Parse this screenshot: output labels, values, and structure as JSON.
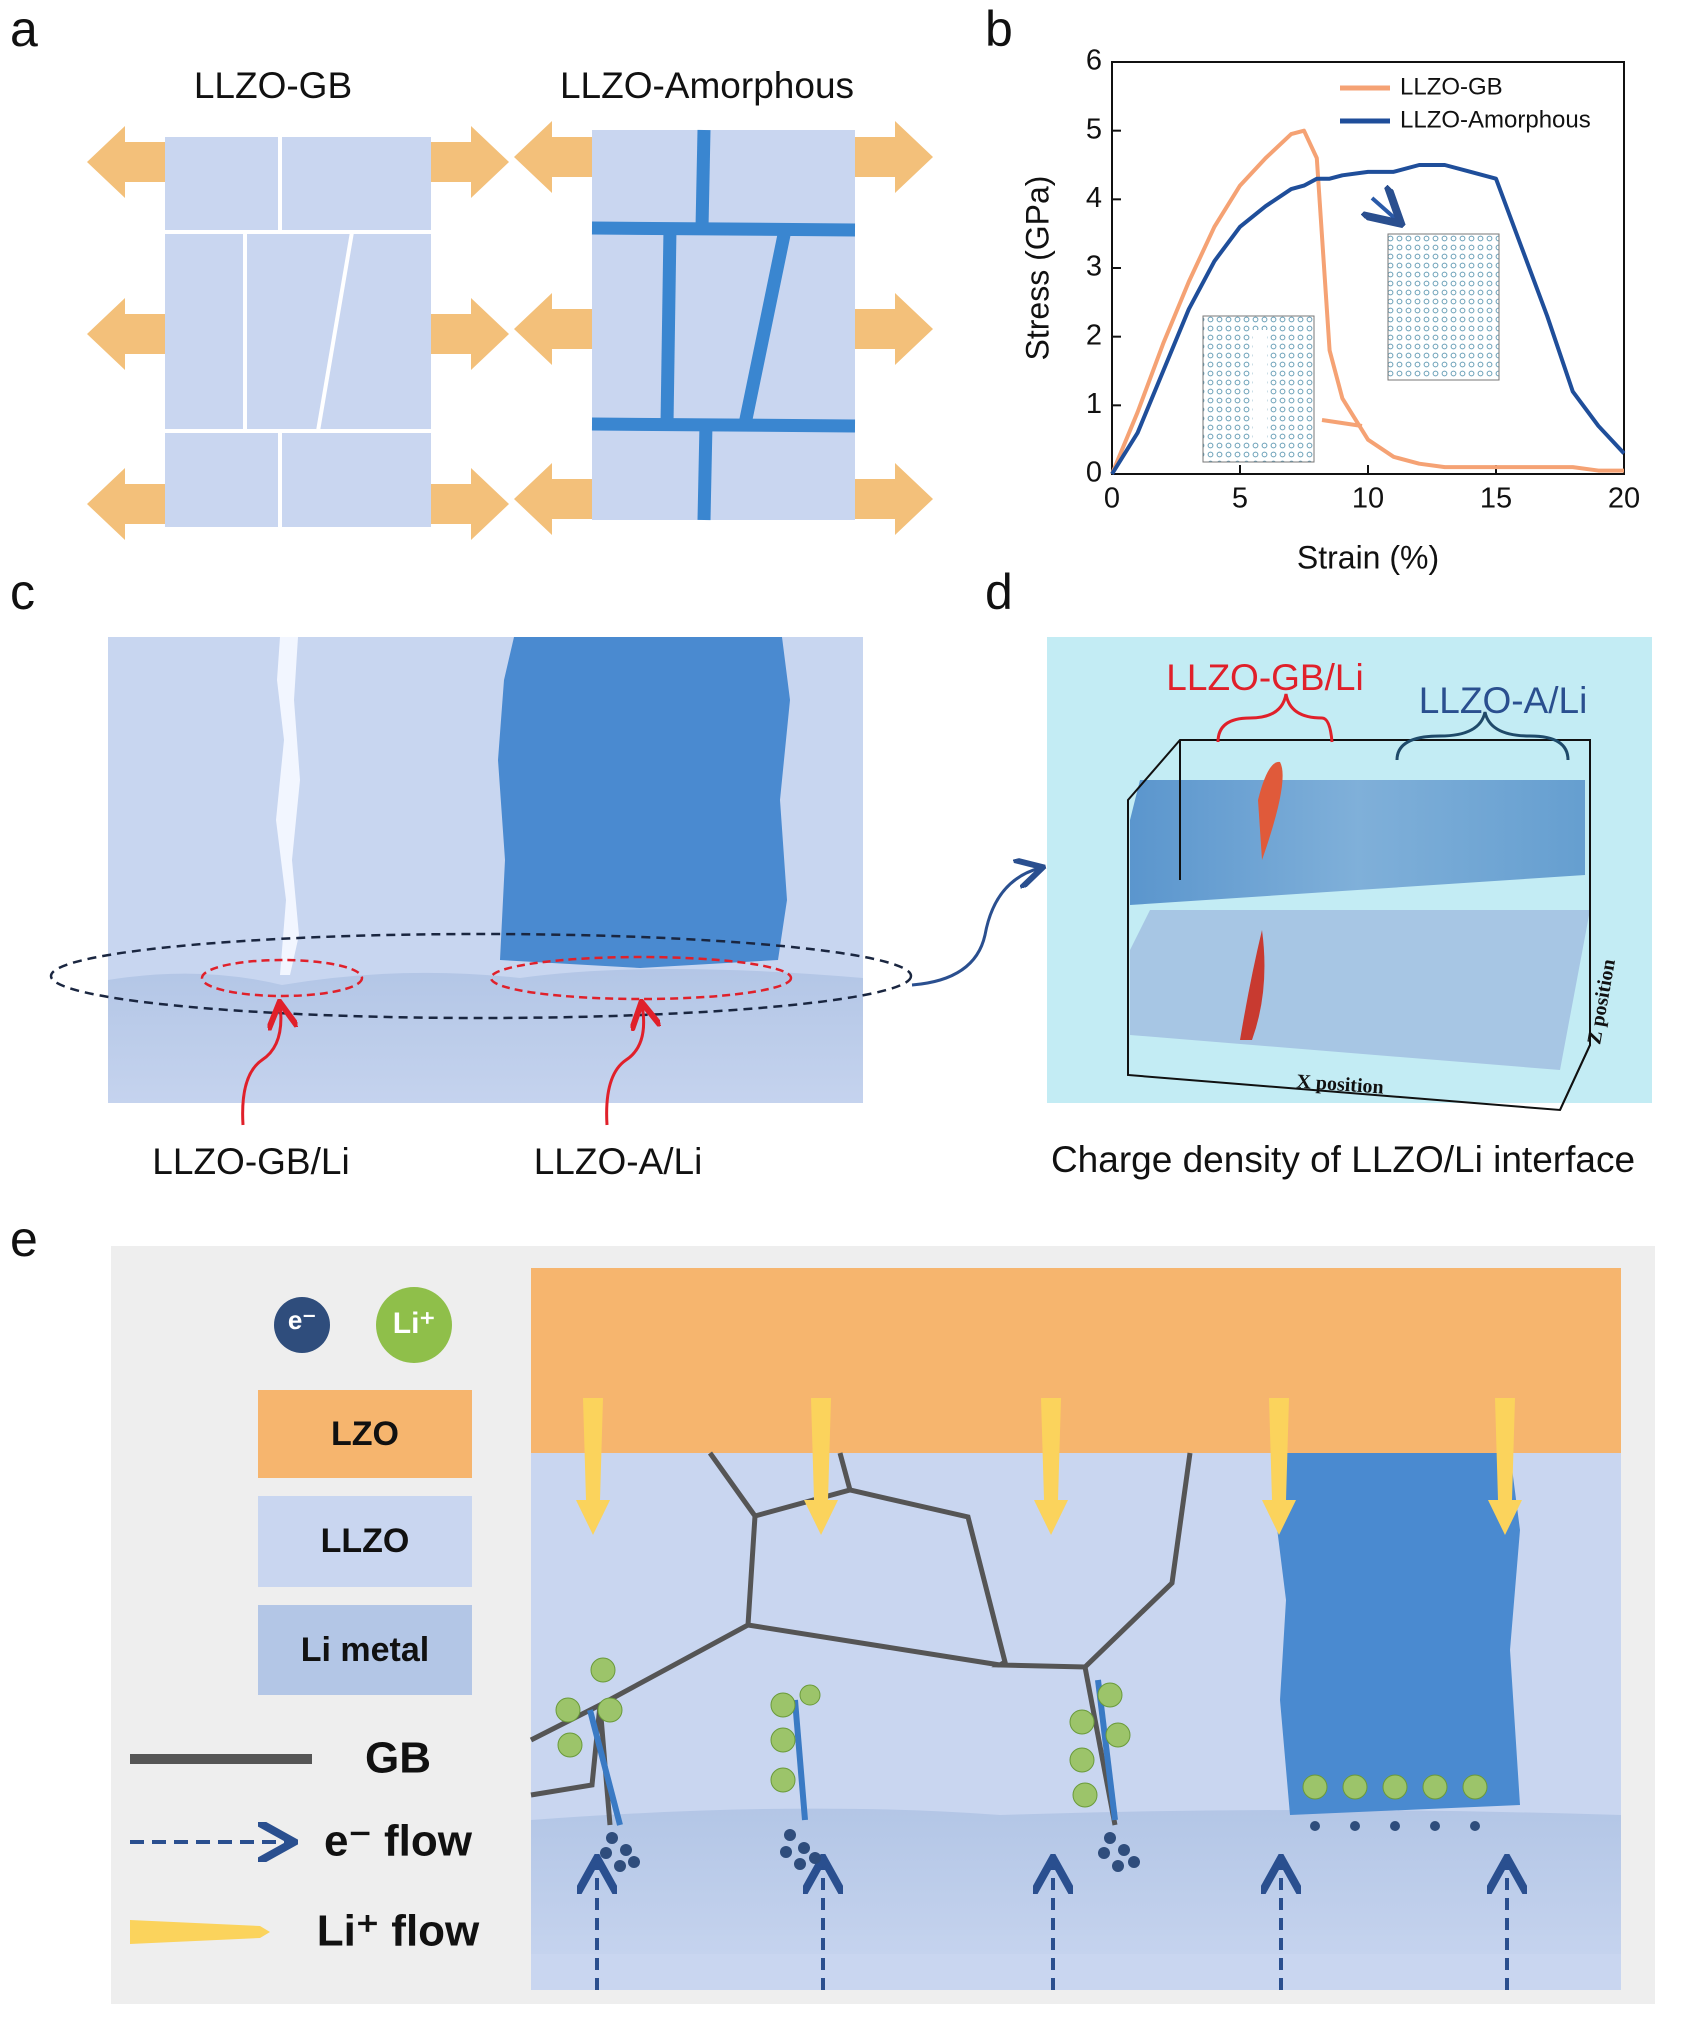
{
  "panel_labels": [
    "a",
    "b",
    "c",
    "d",
    "e"
  ],
  "panel_a": {
    "gb_title": "LLZO-GB",
    "amorphous_title": "LLZO-Amorphous"
  },
  "chart_data": {
    "type": "line",
    "xlabel": "Strain (%)",
    "ylabel": "Stress (GPa)",
    "x": [
      0,
      1,
      2,
      3,
      4,
      5,
      6,
      7,
      7.5,
      8,
      8.5,
      9,
      10,
      11,
      12,
      13,
      14,
      15,
      16,
      17,
      18,
      19,
      20
    ],
    "series": [
      {
        "name": "LLZO-GB",
        "color": "#f5a274",
        "values": [
          0,
          0.9,
          1.9,
          2.8,
          3.6,
          4.2,
          4.6,
          4.95,
          5.0,
          4.6,
          1.8,
          1.1,
          0.5,
          0.25,
          0.15,
          0.1,
          0.1,
          0.1,
          0.1,
          0.1,
          0.1,
          0.05,
          0.05
        ]
      },
      {
        "name": "LLZO-Amorphous",
        "color": "#1f4e9a",
        "values": [
          0,
          0.6,
          1.5,
          2.4,
          3.1,
          3.6,
          3.9,
          4.15,
          4.2,
          4.3,
          4.3,
          4.35,
          4.4,
          4.4,
          4.5,
          4.5,
          4.4,
          4.3,
          3.3,
          2.3,
          1.2,
          0.7,
          0.3
        ]
      }
    ],
    "xlim": [
      0,
      20
    ],
    "xticks": [
      0,
      5,
      10,
      15,
      20
    ],
    "ylim": [
      0,
      6
    ],
    "yticks": [
      0,
      1,
      2,
      3,
      4,
      5,
      6
    ],
    "grid": false,
    "legend": "upper right"
  },
  "panel_c": {
    "labels": [
      "LLZO-GB/Li",
      "LLZO-A/Li"
    ]
  },
  "panel_d": {
    "brace_gb": "LLZO-GB/Li",
    "brace_a": "LLZO-A/Li",
    "x_axis": "X position",
    "z_axis": "Z position",
    "caption": "Charge density of LLZO/Li interface"
  },
  "panel_e": {
    "electron": "e⁻",
    "lithium": "Li⁺",
    "layers": [
      "LZO",
      "LLZO",
      "Li metal"
    ],
    "legend": [
      "GB",
      "e⁻ flow",
      "Li⁺ flow"
    ]
  }
}
